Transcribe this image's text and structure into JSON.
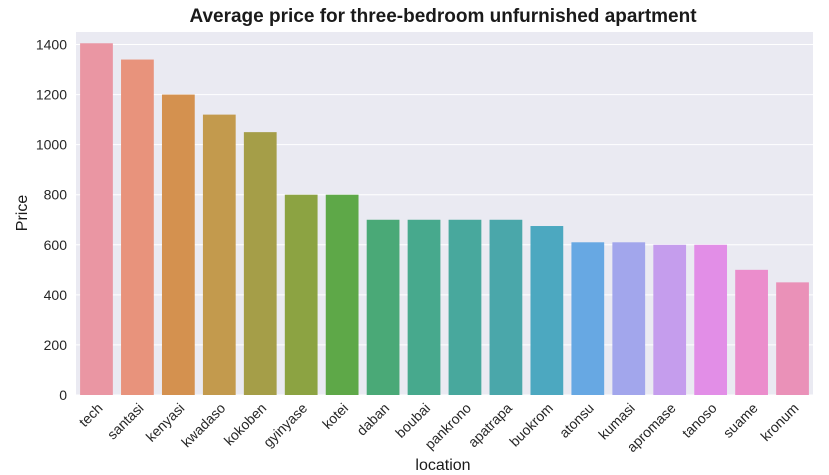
{
  "chart_data": {
    "type": "bar",
    "title": "Average price for three-bedroom unfurnished apartment",
    "xlabel": "location",
    "ylabel": "Price",
    "ylim": [
      0,
      1450
    ],
    "yticks": [
      0,
      200,
      400,
      600,
      800,
      1000,
      1200,
      1400
    ],
    "grid": true,
    "categories": [
      "tech",
      "santasi",
      "kenyasi",
      "kwadaso",
      "kokoben",
      "gyinyase",
      "kotei",
      "daban",
      "boubai",
      "pankrono",
      "apatrapa",
      "buokrom",
      "atonsu",
      "kumasi",
      "apromase",
      "tanoso",
      "suame",
      "kronum"
    ],
    "values": [
      1405,
      1340,
      1200,
      1120,
      1050,
      800,
      800,
      700,
      700,
      700,
      700,
      675,
      610,
      610,
      600,
      600,
      500,
      450
    ],
    "colors": [
      "#ea96a3",
      "#e8937c",
      "#d4914f",
      "#c39a4d",
      "#a59e48",
      "#8ca342",
      "#5ea848",
      "#4aa977",
      "#47a98d",
      "#48a89d",
      "#4aa7aa",
      "#4ca8c0",
      "#67a8e3",
      "#a2a6ec",
      "#c59ded",
      "#e28ee7",
      "#eb8dcc",
      "#ea91b8"
    ],
    "background": "#eaeaf2",
    "gridline_color": "#ffffff"
  }
}
